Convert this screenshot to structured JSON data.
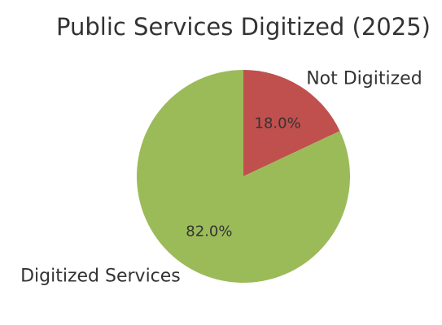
{
  "chart_data": {
    "type": "pie",
    "title": "Public Services Digitized (2025)",
    "slices": [
      {
        "name": "Not Digitized",
        "value": 18.0,
        "percent_label": "18.0%",
        "color": "#c0504d"
      },
      {
        "name": "Digitized Services",
        "value": 82.0,
        "percent_label": "82.0%",
        "color": "#9bbb59"
      }
    ],
    "start_angle": "top (12 o'clock), clockwise",
    "legend": "none"
  }
}
